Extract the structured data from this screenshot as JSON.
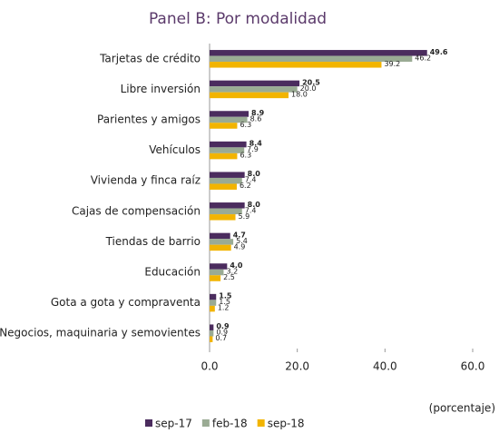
{
  "chart_data": {
    "type": "hbar",
    "title": "Panel B: Por modalidad",
    "unit_label": "(porcentaje)",
    "categories": [
      "Tarjetas de crédito",
      "Libre inversión",
      "Parientes y amigos",
      "Vehículos",
      "Vivienda y finca raíz",
      "Cajas de compensación",
      "Tiendas de barrio",
      "Educación",
      "Gota a gota y compraventa",
      "Negocios, maquinaria y semovientes"
    ],
    "series": [
      {
        "name": "sep-17",
        "color": "#4b2c5e",
        "values": [
          49.6,
          20.5,
          8.9,
          8.4,
          8.0,
          8.0,
          4.7,
          4.0,
          1.5,
          0.9
        ],
        "value_labels": [
          "49.6",
          "20.5",
          "8.9",
          "8.4",
          "8.0",
          "8.0",
          "4.7",
          "4.0",
          "1.5",
          "0.9"
        ]
      },
      {
        "name": "feb-18",
        "color": "#9aab94",
        "values": [
          46.2,
          20.0,
          8.6,
          7.9,
          7.4,
          7.4,
          5.4,
          3.2,
          1.5,
          0.9
        ],
        "value_labels": [
          "46.2",
          "20.0",
          "8.6",
          "7.9",
          "7.4",
          "7.4",
          "5.4",
          "3.2",
          "1.5",
          "0.9"
        ]
      },
      {
        "name": "sep-18",
        "color": "#f2b400",
        "values": [
          39.2,
          18.0,
          6.3,
          6.3,
          6.2,
          5.9,
          4.9,
          2.5,
          1.2,
          0.7
        ],
        "value_labels": [
          "39.2",
          "18.0",
          "6.3",
          "6.3",
          "6.2",
          "5.9",
          "4.9",
          "2.5",
          "1.2",
          "0.7"
        ]
      }
    ],
    "xlim": [
      0,
      60
    ],
    "xticks": [
      {
        "value": 0,
        "label": "0.0"
      },
      {
        "value": 20,
        "label": "20.0"
      },
      {
        "value": 40,
        "label": "40.0"
      },
      {
        "value": 60,
        "label": "60.0"
      }
    ]
  }
}
